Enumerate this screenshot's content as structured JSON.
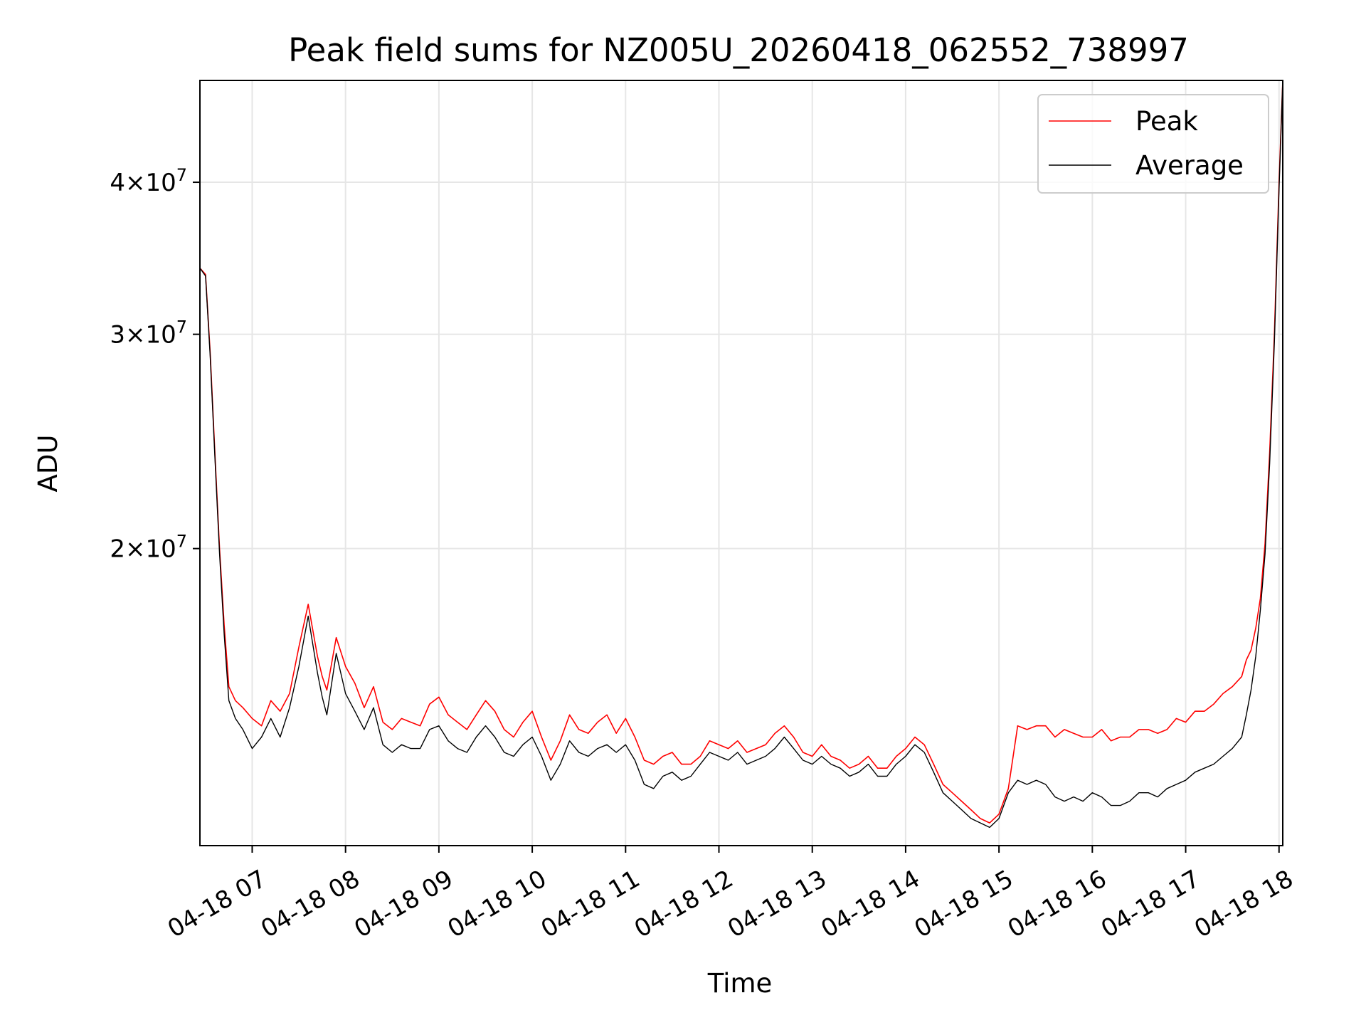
{
  "chart_data": {
    "type": "line",
    "title": "Peak field sums for NZ005U_20260418_062552_738997",
    "xlabel": "Time",
    "ylabel": "ADU",
    "yscale": "log",
    "ylim": [
      11400000,
      48500000
    ],
    "xlim_hours": [
      6.44,
      18.04
    ],
    "grid": true,
    "legend_position": "top-right",
    "x_ticks": [
      {
        "hour": 7,
        "label": "04-18 07"
      },
      {
        "hour": 8,
        "label": "04-18 08"
      },
      {
        "hour": 9,
        "label": "04-18 09"
      },
      {
        "hour": 10,
        "label": "04-18 10"
      },
      {
        "hour": 11,
        "label": "04-18 11"
      },
      {
        "hour": 12,
        "label": "04-18 12"
      },
      {
        "hour": 13,
        "label": "04-18 13"
      },
      {
        "hour": 14,
        "label": "04-18 14"
      },
      {
        "hour": 15,
        "label": "04-18 15"
      },
      {
        "hour": 16,
        "label": "04-18 16"
      },
      {
        "hour": 17,
        "label": "04-18 17"
      },
      {
        "hour": 18,
        "label": "04-18 18"
      }
    ],
    "y_ticks": [
      {
        "value": 20000000,
        "mantissa": "2",
        "exponent": "7"
      },
      {
        "value": 30000000,
        "mantissa": "3",
        "exponent": "7"
      },
      {
        "value": 40000000,
        "mantissa": "4",
        "exponent": "7"
      }
    ],
    "x_hours": [
      6.44,
      6.5,
      6.55,
      6.6,
      6.65,
      6.7,
      6.75,
      6.82,
      6.9,
      7.0,
      7.1,
      7.2,
      7.3,
      7.4,
      7.5,
      7.6,
      7.7,
      7.75,
      7.8,
      7.9,
      8.0,
      8.1,
      8.2,
      8.3,
      8.4,
      8.5,
      8.6,
      8.7,
      8.8,
      8.9,
      9.0,
      9.1,
      9.2,
      9.3,
      9.4,
      9.5,
      9.6,
      9.7,
      9.8,
      9.9,
      10.0,
      10.1,
      10.2,
      10.3,
      10.4,
      10.5,
      10.6,
      10.7,
      10.8,
      10.9,
      11.0,
      11.1,
      11.2,
      11.3,
      11.4,
      11.5,
      11.6,
      11.7,
      11.8,
      11.9,
      12.0,
      12.1,
      12.2,
      12.3,
      12.4,
      12.5,
      12.6,
      12.7,
      12.8,
      12.9,
      13.0,
      13.1,
      13.2,
      13.3,
      13.4,
      13.5,
      13.6,
      13.7,
      13.8,
      13.9,
      14.0,
      14.1,
      14.2,
      14.3,
      14.4,
      14.5,
      14.6,
      14.7,
      14.8,
      14.9,
      15.0,
      15.1,
      15.2,
      15.3,
      15.4,
      15.5,
      15.6,
      15.7,
      15.8,
      15.9,
      16.0,
      16.1,
      16.2,
      16.3,
      16.4,
      16.5,
      16.6,
      16.7,
      16.8,
      16.9,
      17.0,
      17.1,
      17.2,
      17.3,
      17.4,
      17.5,
      17.6,
      17.65,
      17.7,
      17.75,
      17.8,
      17.85,
      17.9,
      17.95,
      18.0,
      18.04
    ],
    "series": [
      {
        "name": "Peak",
        "color": "#ff0000",
        "values": [
          34000000,
          33600000,
          29000000,
          24000000,
          20000000,
          17300000,
          15400000,
          15000000,
          14800000,
          14500000,
          14300000,
          15000000,
          14700000,
          15200000,
          16600000,
          18000000,
          16300000,
          15700000,
          15300000,
          16900000,
          16000000,
          15500000,
          14800000,
          15400000,
          14400000,
          14200000,
          14500000,
          14400000,
          14300000,
          14900000,
          15100000,
          14600000,
          14400000,
          14200000,
          14600000,
          15000000,
          14700000,
          14200000,
          14000000,
          14400000,
          14700000,
          14000000,
          13400000,
          13900000,
          14600000,
          14200000,
          14100000,
          14400000,
          14600000,
          14100000,
          14500000,
          14000000,
          13400000,
          13300000,
          13500000,
          13600000,
          13300000,
          13300000,
          13500000,
          13900000,
          13800000,
          13700000,
          13900000,
          13600000,
          13700000,
          13800000,
          14100000,
          14300000,
          14000000,
          13600000,
          13500000,
          13800000,
          13500000,
          13400000,
          13200000,
          13300000,
          13500000,
          13200000,
          13200000,
          13500000,
          13700000,
          14000000,
          13800000,
          13300000,
          12800000,
          12600000,
          12400000,
          12200000,
          12000000,
          11900000,
          12100000,
          12700000,
          14300000,
          14200000,
          14300000,
          14300000,
          14000000,
          14200000,
          14100000,
          14000000,
          14000000,
          14200000,
          13900000,
          14000000,
          14000000,
          14200000,
          14200000,
          14100000,
          14200000,
          14500000,
          14400000,
          14700000,
          14700000,
          14900000,
          15200000,
          15400000,
          15700000,
          16200000,
          16500000,
          17200000,
          18200000,
          20200000,
          24000000,
          30000000,
          40000000,
          48500000
        ]
      },
      {
        "name": "Average",
        "color": "#000000",
        "values": [
          34000000,
          33500000,
          28800000,
          23800000,
          19800000,
          17000000,
          15000000,
          14500000,
          14200000,
          13700000,
          14000000,
          14500000,
          14000000,
          14800000,
          16000000,
          17600000,
          15800000,
          15100000,
          14600000,
          16400000,
          15200000,
          14700000,
          14200000,
          14800000,
          13800000,
          13600000,
          13800000,
          13700000,
          13700000,
          14200000,
          14300000,
          13900000,
          13700000,
          13600000,
          14000000,
          14300000,
          14000000,
          13600000,
          13500000,
          13800000,
          14000000,
          13500000,
          12900000,
          13300000,
          13900000,
          13600000,
          13500000,
          13700000,
          13800000,
          13600000,
          13800000,
          13400000,
          12800000,
          12700000,
          13000000,
          13100000,
          12900000,
          13000000,
          13300000,
          13600000,
          13500000,
          13400000,
          13600000,
          13300000,
          13400000,
          13500000,
          13700000,
          14000000,
          13700000,
          13400000,
          13300000,
          13500000,
          13300000,
          13200000,
          13000000,
          13100000,
          13300000,
          13000000,
          13000000,
          13300000,
          13500000,
          13800000,
          13600000,
          13100000,
          12600000,
          12400000,
          12200000,
          12000000,
          11900000,
          11800000,
          12000000,
          12600000,
          12900000,
          12800000,
          12900000,
          12800000,
          12500000,
          12400000,
          12500000,
          12400000,
          12600000,
          12500000,
          12300000,
          12300000,
          12400000,
          12600000,
          12600000,
          12500000,
          12700000,
          12800000,
          12900000,
          13100000,
          13200000,
          13300000,
          13500000,
          13700000,
          14000000,
          14600000,
          15300000,
          16300000,
          17800000,
          19800000,
          23500000,
          29500000,
          39500000,
          48500000
        ]
      }
    ]
  }
}
